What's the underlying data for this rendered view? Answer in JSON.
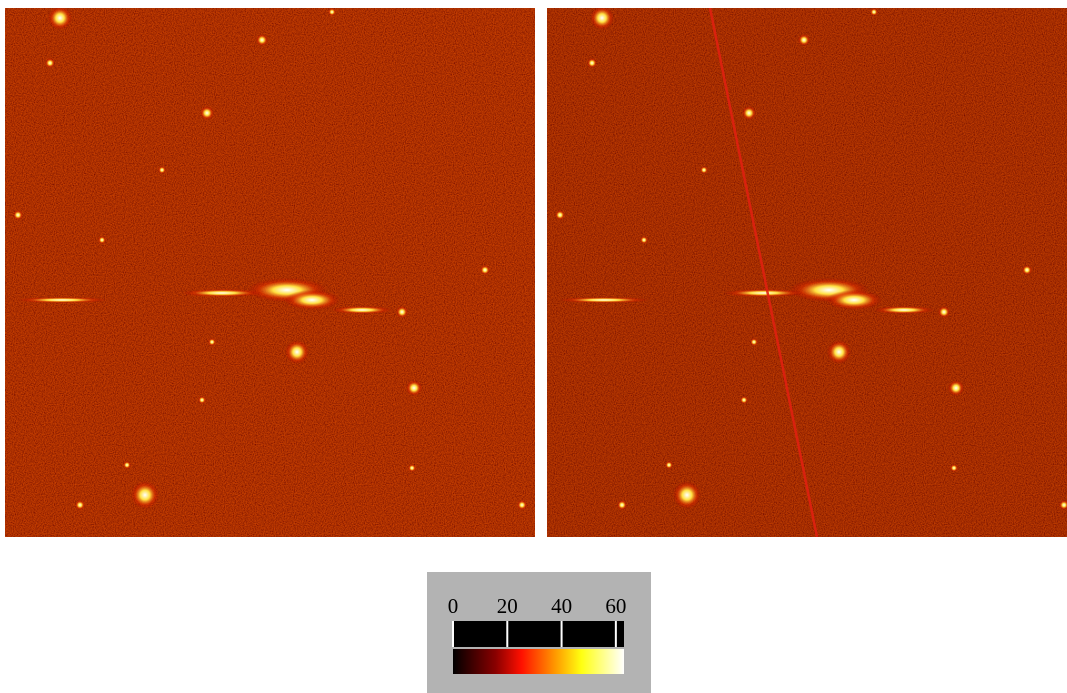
{
  "colorbar": {
    "lim": [
      0,
      63
    ],
    "ticks": [
      0,
      20,
      40,
      60
    ]
  }
}
